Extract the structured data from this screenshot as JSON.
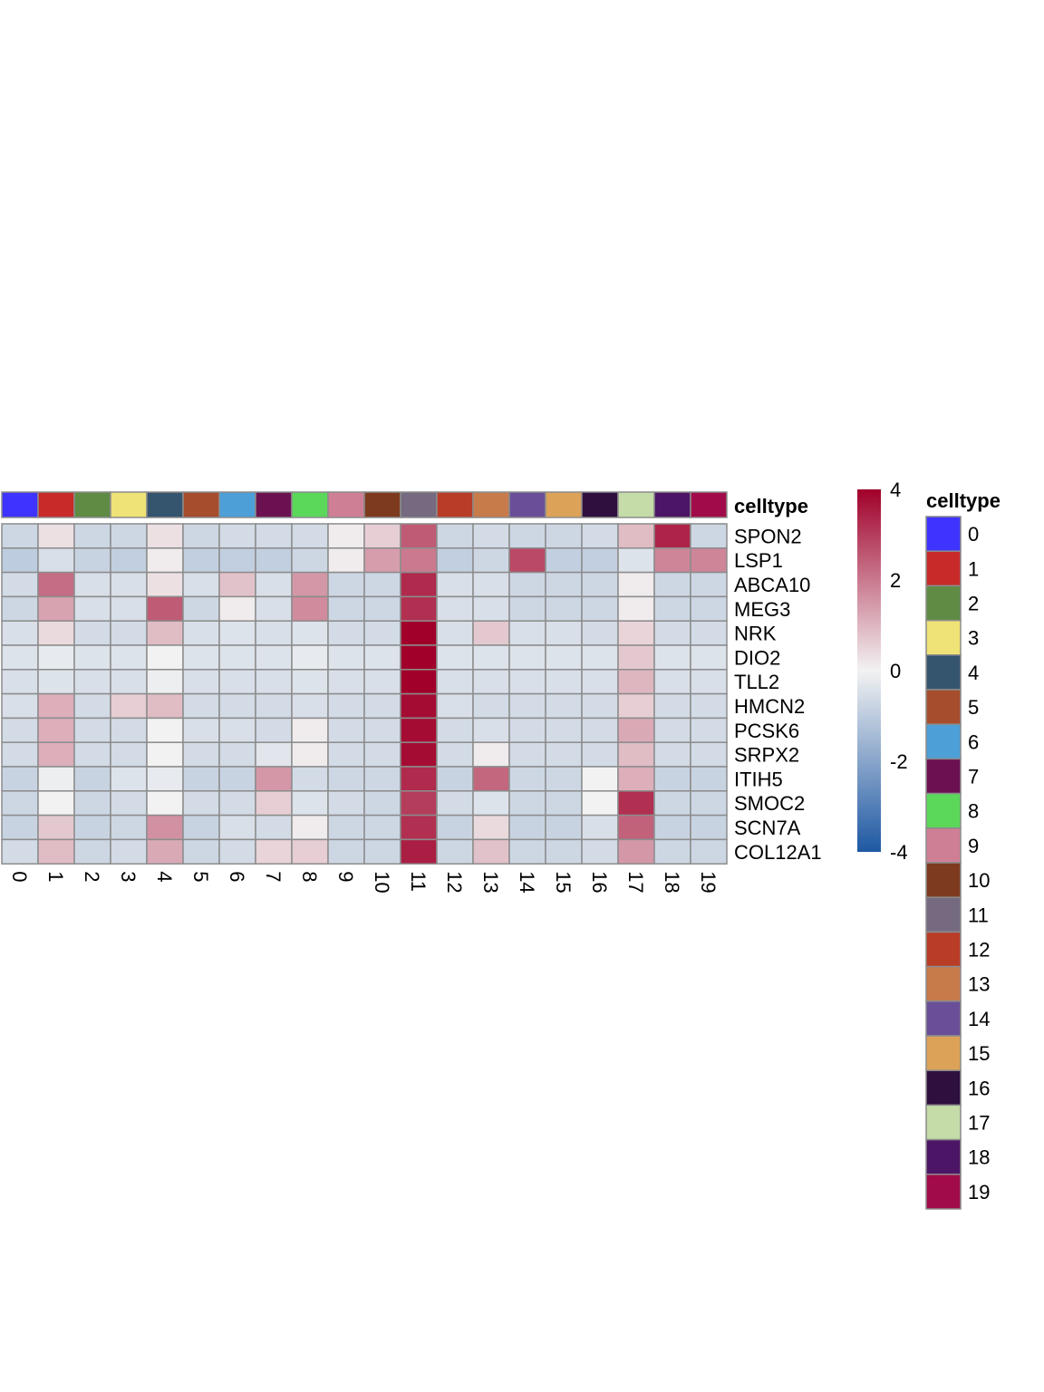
{
  "chart_data": {
    "type": "heatmap",
    "title": "",
    "columns": [
      "0",
      "1",
      "2",
      "3",
      "4",
      "5",
      "6",
      "7",
      "8",
      "9",
      "10",
      "11",
      "12",
      "13",
      "14",
      "15",
      "16",
      "17",
      "18",
      "19"
    ],
    "rows": [
      "SPON2",
      "LSP1",
      "ABCA10",
      "MEG3",
      "NRK",
      "DIO2",
      "TLL2",
      "HMCN2",
      "PCSK6",
      "SRPX2",
      "ITIH5",
      "SMOC2",
      "SCN7A",
      "COL12A1"
    ],
    "values": [
      [
        -0.7,
        0.3,
        -0.7,
        -0.7,
        0.3,
        -0.7,
        -0.6,
        -0.6,
        -0.6,
        0.1,
        0.6,
        2.5,
        -0.7,
        -0.6,
        -0.7,
        -0.7,
        -0.6,
        0.9,
        3.4,
        -0.7
      ],
      [
        -1.0,
        -0.5,
        -0.8,
        -0.9,
        0.1,
        -0.9,
        -0.9,
        -0.9,
        -0.7,
        0.1,
        1.4,
        2.0,
        -0.9,
        -0.7,
        2.8,
        -0.9,
        -0.9,
        -0.4,
        1.8,
        1.8
      ],
      [
        -0.6,
        2.2,
        -0.5,
        -0.5,
        0.3,
        -0.5,
        0.8,
        -0.5,
        1.5,
        -0.7,
        -0.7,
        3.3,
        -0.5,
        -0.5,
        -0.7,
        -0.7,
        -0.7,
        0.1,
        -0.7,
        -0.7
      ],
      [
        -0.7,
        1.3,
        -0.5,
        -0.5,
        2.5,
        -0.7,
        0.1,
        -0.5,
        1.7,
        -0.7,
        -0.7,
        3.2,
        -0.5,
        -0.5,
        -0.7,
        -0.7,
        -0.7,
        0.1,
        -0.7,
        -0.7
      ],
      [
        -0.5,
        0.4,
        -0.6,
        -0.6,
        0.9,
        -0.5,
        -0.4,
        -0.5,
        -0.4,
        -0.6,
        -0.6,
        4.0,
        -0.5,
        0.7,
        -0.5,
        -0.5,
        -0.6,
        0.5,
        -0.6,
        -0.6
      ],
      [
        -0.4,
        -0.2,
        -0.4,
        -0.4,
        0.0,
        -0.4,
        -0.4,
        -0.4,
        -0.2,
        -0.4,
        -0.4,
        4.0,
        -0.4,
        -0.4,
        -0.4,
        -0.4,
        -0.4,
        0.7,
        -0.4,
        -0.4
      ],
      [
        -0.5,
        -0.4,
        -0.5,
        -0.5,
        -0.1,
        -0.5,
        -0.5,
        -0.5,
        -0.4,
        -0.5,
        -0.5,
        4.0,
        -0.5,
        -0.5,
        -0.5,
        -0.5,
        -0.5,
        1.0,
        -0.5,
        -0.5
      ],
      [
        -0.5,
        1.1,
        -0.6,
        0.6,
        0.9,
        -0.6,
        -0.6,
        -0.6,
        -0.5,
        -0.6,
        -0.6,
        3.8,
        -0.5,
        -0.6,
        -0.6,
        -0.6,
        -0.6,
        0.6,
        -0.6,
        -0.6
      ],
      [
        -0.6,
        1.1,
        -0.6,
        -0.6,
        0.0,
        -0.5,
        -0.5,
        -0.6,
        0.1,
        -0.6,
        -0.6,
        3.8,
        -0.6,
        -0.5,
        -0.6,
        -0.6,
        -0.6,
        1.2,
        -0.6,
        -0.6
      ],
      [
        -0.6,
        1.1,
        -0.6,
        -0.6,
        0.0,
        -0.6,
        -0.6,
        -0.3,
        0.1,
        -0.6,
        -0.6,
        3.8,
        -0.6,
        0.1,
        -0.6,
        -0.6,
        -0.6,
        0.9,
        -0.6,
        -0.6
      ],
      [
        -0.8,
        -0.1,
        -0.8,
        -0.4,
        -0.2,
        -0.8,
        -0.8,
        1.5,
        -0.6,
        -0.7,
        -0.7,
        3.3,
        -0.8,
        2.3,
        -0.7,
        -0.7,
        0.0,
        1.1,
        -0.8,
        -0.8
      ],
      [
        -0.7,
        0.0,
        -0.7,
        -0.6,
        0.0,
        -0.6,
        -0.6,
        0.6,
        -0.4,
        -0.6,
        -0.7,
        3.0,
        -0.6,
        -0.4,
        -0.7,
        -0.7,
        0.0,
        3.2,
        -0.7,
        -0.7
      ],
      [
        -0.8,
        0.7,
        -0.8,
        -0.7,
        1.6,
        -0.8,
        -0.5,
        -0.6,
        0.1,
        -0.7,
        -0.7,
        3.2,
        -0.8,
        0.4,
        -0.8,
        -0.8,
        -0.5,
        2.4,
        -0.8,
        -0.8
      ],
      [
        -0.6,
        0.9,
        -0.7,
        -0.6,
        1.2,
        -0.7,
        -0.6,
        0.5,
        0.6,
        -0.7,
        -0.7,
        3.5,
        -0.7,
        0.8,
        -0.7,
        -0.7,
        -0.6,
        1.5,
        -0.7,
        -0.7
      ]
    ],
    "annotation": {
      "title": "celltype",
      "levels": [
        "0",
        "1",
        "2",
        "3",
        "4",
        "5",
        "6",
        "7",
        "8",
        "9",
        "10",
        "11",
        "12",
        "13",
        "14",
        "15",
        "16",
        "17",
        "18",
        "19"
      ],
      "colors": [
        "#3F33FF",
        "#C82A2A",
        "#5F8B45",
        "#EFE277",
        "#35546E",
        "#A64D2D",
        "#4D9FD7",
        "#6B1151",
        "#5BD75A",
        "#CE7F96",
        "#7E3A1F",
        "#756A80",
        "#B93C27",
        "#C77B4B",
        "#6A4F98",
        "#DCA258",
        "#2E0F3D",
        "#C5DBA8",
        "#4C1566",
        "#A20B49"
      ]
    },
    "colorbar": {
      "range": [
        -4,
        4
      ],
      "ticks": [
        4,
        2,
        0,
        -2,
        -4
      ],
      "tick_labels": [
        "4",
        "2",
        "0",
        "-2",
        "-4"
      ],
      "low_color": "#1E58A3",
      "mid_color": "#F2F2F2",
      "high_color": "#A1002A"
    },
    "grid_color": "#8C8C8C"
  }
}
